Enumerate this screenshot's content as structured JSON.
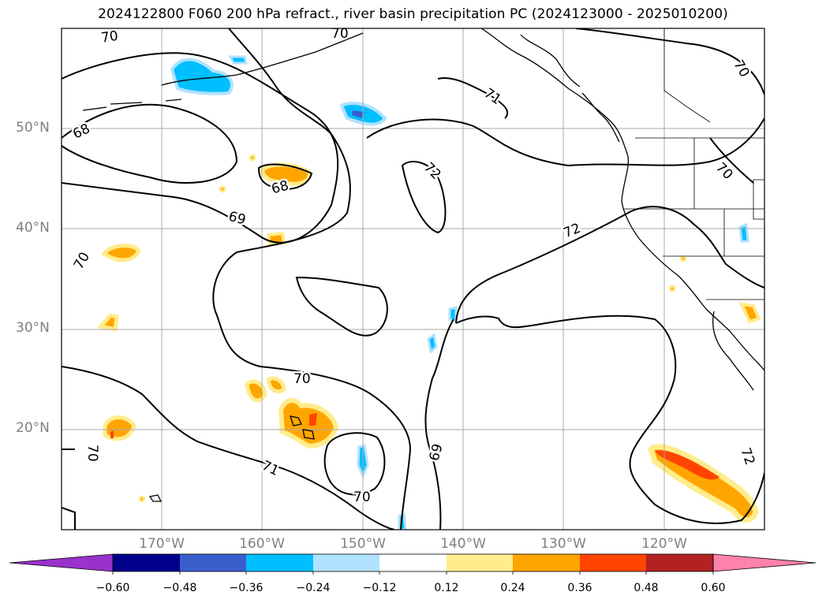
{
  "title": "2024122800 F060 200 hPa refract., river basin precipitation PC (2024123000 - 2025010200)",
  "lat_labels": [
    "50°N",
    "40°N",
    "30°N",
    "20°N"
  ],
  "lon_labels": [
    "170°W",
    "160°W",
    "150°W",
    "140°W",
    "130°W",
    "120°W"
  ],
  "contour_labels": [
    "70",
    "68",
    "69",
    "70",
    "71",
    "72",
    "72",
    "70",
    "68",
    "70",
    "70",
    "70",
    "71",
    "69",
    "70",
    "72",
    "70"
  ],
  "colorbar": {
    "ticks": [
      "−0.60",
      "−0.48",
      "−0.36",
      "−0.24",
      "−0.12",
      "0.12",
      "0.24",
      "0.36",
      "0.48",
      "0.60"
    ],
    "colors": [
      "#9932cc",
      "#00008b",
      "#3a5fcd",
      "#00bfff",
      "#b0e2ff",
      "#ffffff",
      "#ffec8b",
      "#ffa500",
      "#ff4500",
      "#b22222",
      "#ff82ab"
    ]
  }
}
